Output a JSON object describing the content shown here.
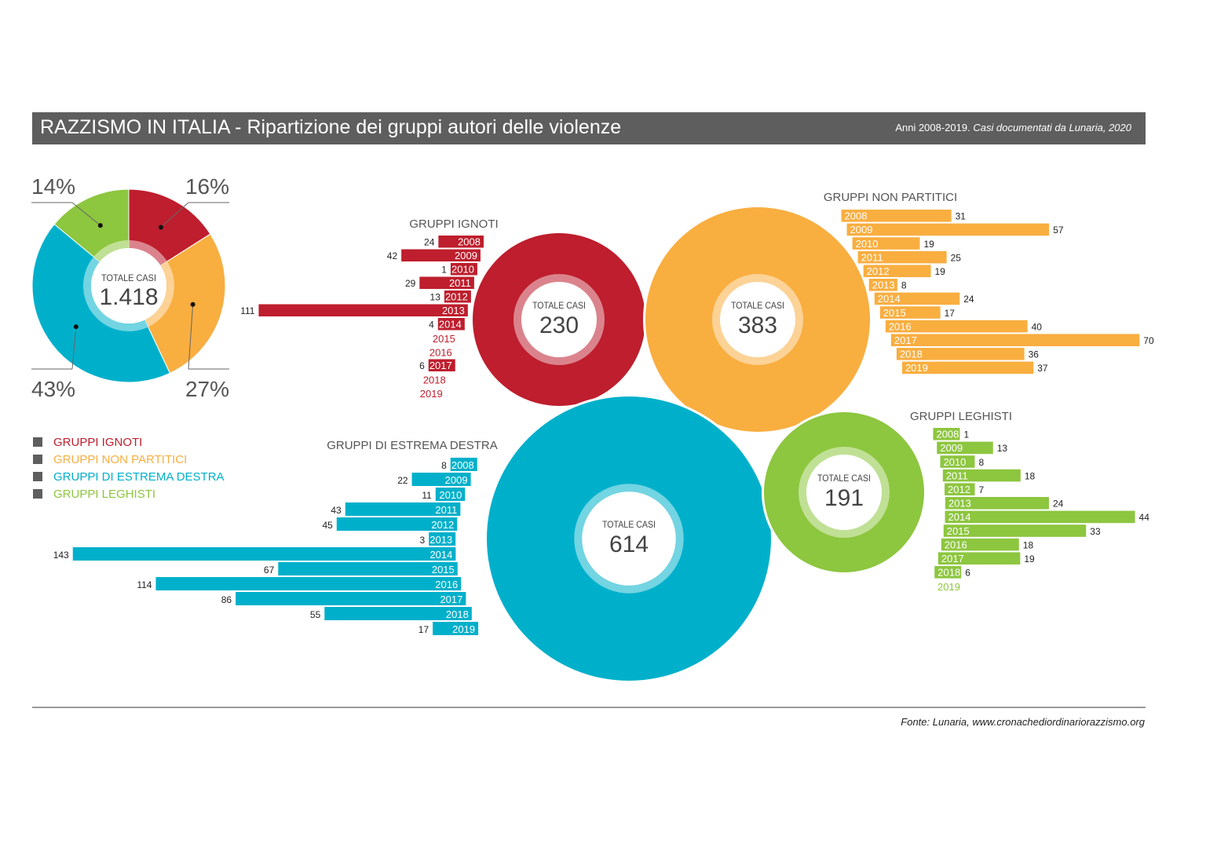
{
  "header": {
    "title": "RAZZISMO IN ITALIA - Ripartizione dei gruppi autori delle violenze",
    "subtitle_plain": "Anni 2008-2019.",
    "subtitle_italic": "Casi documentati da Lunaria, 2020"
  },
  "footer": {
    "source": "Fonte: Lunaria, www.cronachediordinariorazzismo.org"
  },
  "chart_data": [
    {
      "type": "pie",
      "center_label": "TOTALE CASI",
      "center_value": "1.418",
      "slices": [
        {
          "name": "GRUPPI IGNOTI",
          "percent": 16,
          "label": "16%",
          "color": "#be1e2d"
        },
        {
          "name": "GRUPPI NON PARTITICI",
          "percent": 27,
          "label": "27%",
          "color": "#f9ae40"
        },
        {
          "name": "GRUPPI DI ESTREMA DESTRA",
          "percent": 43,
          "label": "43%",
          "color": "#00b0cb"
        },
        {
          "name": "GRUPPI LEGHISTI",
          "percent": 14,
          "label": "14%",
          "color": "#8dc63f"
        }
      ],
      "legend": [
        "GRUPPI IGNOTI",
        "GRUPPI NON PARTITICI",
        "GRUPPI DI ESTREMA DESTRA",
        "GRUPPI LEGHISTI"
      ]
    },
    {
      "type": "bar",
      "title": "GRUPPI IGNOTI",
      "color": "#be1e2d",
      "center_label": "TOTALE CASI",
      "total": "230",
      "categories": [
        "2008",
        "2009",
        "2010",
        "2011",
        "2012",
        "2013",
        "2014",
        "2015",
        "2016",
        "2017",
        "2018",
        "2019"
      ],
      "values": [
        24,
        42,
        1,
        29,
        13,
        111,
        4,
        null,
        null,
        6,
        null,
        null
      ]
    },
    {
      "type": "bar",
      "title": "GRUPPI NON PARTITICI",
      "color": "#f9ae40",
      "center_label": "TOTALE CASI",
      "total": "383",
      "categories": [
        "2008",
        "2009",
        "2010",
        "2011",
        "2012",
        "2013",
        "2014",
        "2015",
        "2016",
        "2017",
        "2018",
        "2019"
      ],
      "values": [
        31,
        57,
        19,
        25,
        19,
        8,
        24,
        17,
        40,
        70,
        36,
        37
      ]
    },
    {
      "type": "bar",
      "title": "GRUPPI DI ESTREMA DESTRA",
      "color": "#00b0cb",
      "center_label": "TOTALE CASI",
      "total": "614",
      "categories": [
        "2008",
        "2009",
        "2010",
        "2011",
        "2012",
        "2013",
        "2014",
        "2015",
        "2016",
        "2017",
        "2018",
        "2019"
      ],
      "values": [
        8,
        22,
        11,
        43,
        45,
        3,
        143,
        67,
        114,
        86,
        55,
        17
      ]
    },
    {
      "type": "bar",
      "title": "GRUPPI LEGHISTI",
      "color": "#8dc63f",
      "center_label": "TOTALE CASI",
      "total": "191",
      "categories": [
        "2008",
        "2009",
        "2010",
        "2011",
        "2012",
        "2013",
        "2014",
        "2015",
        "2016",
        "2017",
        "2018",
        "2019"
      ],
      "values": [
        1,
        13,
        8,
        18,
        7,
        24,
        44,
        33,
        18,
        19,
        6,
        null
      ]
    }
  ]
}
